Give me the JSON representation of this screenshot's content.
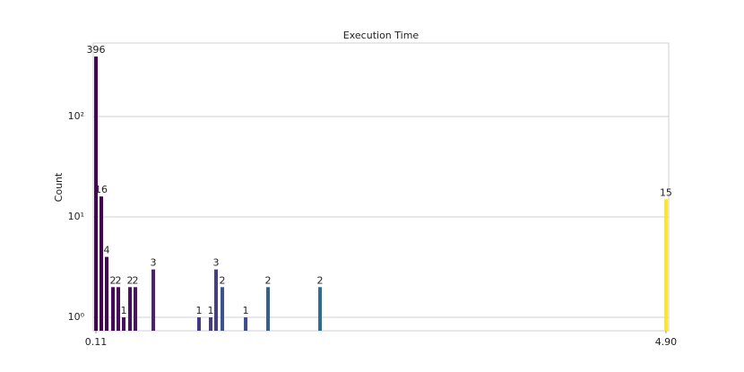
{
  "chart_data": {
    "type": "bar",
    "title": "Execution Time",
    "ylabel": "Count",
    "x": [
      0.11,
      0.155,
      0.2,
      0.253,
      0.298,
      0.343,
      0.396,
      0.441,
      0.592,
      0.976,
      1.074,
      1.119,
      1.172,
      1.368,
      1.556,
      1.993,
      4.9
    ],
    "values": [
      396,
      16,
      4,
      2,
      2,
      1,
      2,
      2,
      3,
      1,
      1,
      3,
      2,
      1,
      2,
      2,
      15
    ],
    "colors": [
      "#440154",
      "#440256",
      "#450457",
      "#46075a",
      "#460a5d",
      "#470d60",
      "#471063",
      "#481467",
      "#482173",
      "#453781",
      "#443b84",
      "#433e85",
      "#3b528b",
      "#3e4c8a",
      "#355f8d",
      "#2f6c8e",
      "#fde725"
    ],
    "xlim": [
      0.087,
      4.923
    ],
    "xticks": [
      0.11,
      {
        "value": 4.9,
        "label": "4.90"
      }
    ],
    "ylim": [
      0.735,
      540
    ],
    "yscale": "log",
    "yticks": [
      {
        "value": 1,
        "label": "10⁰"
      },
      {
        "value": 10,
        "label": "10¹"
      },
      {
        "value": 100,
        "label": "10²"
      }
    ],
    "grid": true
  }
}
